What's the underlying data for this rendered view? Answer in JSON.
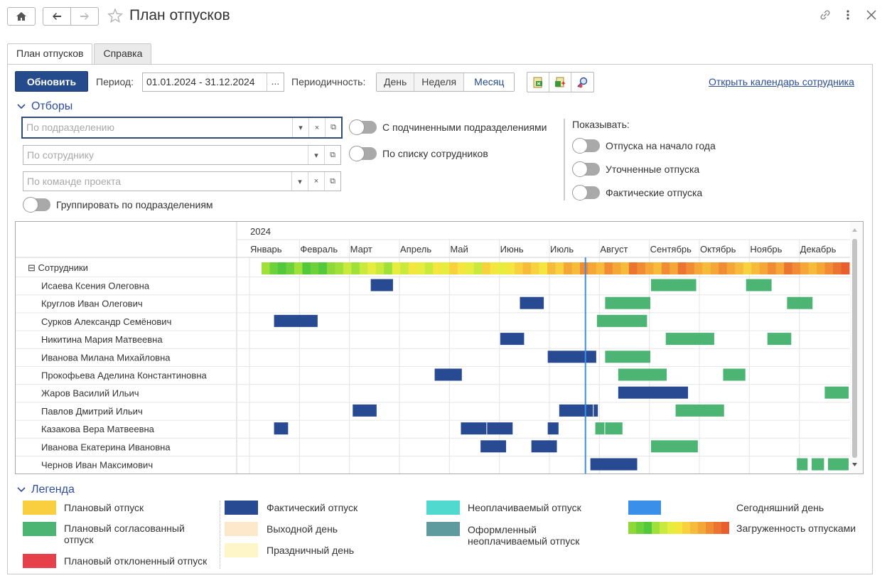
{
  "window": {
    "title": "План отпусков"
  },
  "tabs": [
    {
      "label": "План отпусков",
      "active": true
    },
    {
      "label": "Справка",
      "active": false
    }
  ],
  "toolbar": {
    "refresh_label": "Обновить",
    "period_label": "Период:",
    "period_value": "01.01.2024 - 31.12.2024",
    "period_dots": "...",
    "periodicity_label": "Периодичность:",
    "periodicity_options": [
      "День",
      "Неделя",
      "Месяц"
    ],
    "periodicity_selected": "Месяц",
    "open_calendar_link": "Открыть календарь сотрудника"
  },
  "filters": {
    "header": "Отборы",
    "department_placeholder": "По подразделению",
    "employee_placeholder": "По сотруднику",
    "team_placeholder": "По команде проекта",
    "with_subdepartments": "С подчиненными подразделениями",
    "by_employee_list": "По списку сотрудников",
    "group_by_department": "Группировать по подразделениям",
    "show_label": "Показывать:",
    "show_start_year": "Отпуска на начало года",
    "show_refined": "Уточненные отпуска",
    "show_actual": "Фактические отпуска"
  },
  "gantt": {
    "year": "2024",
    "months": [
      "Январь",
      "Февраль",
      "Март",
      "Апрель",
      "Май",
      "Июнь",
      "Июль",
      "Август",
      "Сентябрь",
      "Октябрь",
      "Ноябрь",
      "Декабрь"
    ],
    "group_label": "Сотрудники",
    "today_day": 205,
    "colors": {
      "actual": "#284a92",
      "planned_approved": "#4cb573",
      "today_line": "#3a8fe8"
    },
    "employees": [
      {
        "name": "Исаева Ксения Олеговна",
        "actual": [
          [
            74,
            88
          ]
        ],
        "approved": [
          [
            245,
            273
          ],
          [
            303,
            319
          ]
        ]
      },
      {
        "name": "Круглов Иван Олегович",
        "actual": [
          [
            165,
            180
          ]
        ],
        "approved": [
          [
            217,
            245
          ],
          [
            328,
            344
          ]
        ]
      },
      {
        "name": "Сурков Александр Семёнович",
        "actual": [
          [
            15,
            42
          ]
        ],
        "approved": [
          [
            212,
            243
          ]
        ]
      },
      {
        "name": "Никитина Мария Матвеевна",
        "actual": [
          [
            153,
            168
          ]
        ],
        "approved": [
          [
            254,
            284
          ],
          [
            316,
            331
          ]
        ]
      },
      {
        "name": "Иванова Милана Михайловна",
        "actual": [
          [
            182,
            212
          ]
        ],
        "approved": [
          [
            217,
            245
          ]
        ]
      },
      {
        "name": "Прокофьева Аделина Константиновна",
        "actual": [
          [
            113,
            130
          ]
        ],
        "approved": [
          [
            225,
            255
          ],
          [
            289,
            303
          ]
        ]
      },
      {
        "name": "Жаров Василий Ильич",
        "actual": [
          [
            225,
            268
          ]
        ],
        "approved": [
          [
            351,
            366
          ]
        ]
      },
      {
        "name": "Павлов Дмитрий Ильич",
        "actual": [
          [
            63,
            78
          ],
          [
            189,
            210
          ],
          [
            210,
            213
          ]
        ],
        "approved": [
          [
            260,
            290
          ]
        ]
      },
      {
        "name": "Казакова Вера Матвеевна",
        "actual": [
          [
            15,
            24
          ],
          [
            129,
            145
          ],
          [
            145,
            161
          ],
          [
            182,
            189
          ]
        ],
        "approved": [
          [
            211,
            217
          ],
          [
            217,
            228
          ]
        ]
      },
      {
        "name": "Иванова Екатерина Ивановна",
        "actual": [
          [
            141,
            157
          ],
          [
            172,
            188
          ]
        ],
        "approved": [
          [
            245,
            274
          ]
        ]
      },
      {
        "name": "Чернов Иван Максимович",
        "actual": [
          [
            208,
            237
          ]
        ],
        "approved": [
          [
            334,
            341
          ],
          [
            343,
            351
          ],
          [
            353,
            366
          ]
        ]
      }
    ],
    "heat_colors": [
      "#8fd83a",
      "#6dd13c",
      "#52c93c",
      "#9fe13a",
      "#c9e93c",
      "#e7ed3e",
      "#f5e63f",
      "#f7d23e",
      "#f6bb3b",
      "#f4a637",
      "#f08d34",
      "#ec7431",
      "#e85e2e"
    ]
  },
  "legend": {
    "header": "Легенда",
    "items": [
      {
        "label": "Плановый отпуск",
        "color": "#f9cf3f"
      },
      {
        "label": "Плановый согласованный отпуск",
        "color": "#4cb573"
      },
      {
        "label": "Плановый отклоненный отпуск",
        "color": "#e6404a"
      },
      {
        "label": "Фактический отпуск",
        "color": "#284a92"
      },
      {
        "label": "Выходной день",
        "color": "#fde8cc"
      },
      {
        "label": "Праздничный день",
        "color": "#fef6c8"
      },
      {
        "label": "Неоплачиваемый отпуск",
        "color": "#4fd9cf"
      },
      {
        "label": "Оформленный неоплачиваемый отпуск",
        "color": "#5e9b9f"
      },
      {
        "label": "Сегодняшний день",
        "color": "#3a8fe8"
      },
      {
        "label": "Загруженность отпусками",
        "color": ""
      }
    ]
  }
}
